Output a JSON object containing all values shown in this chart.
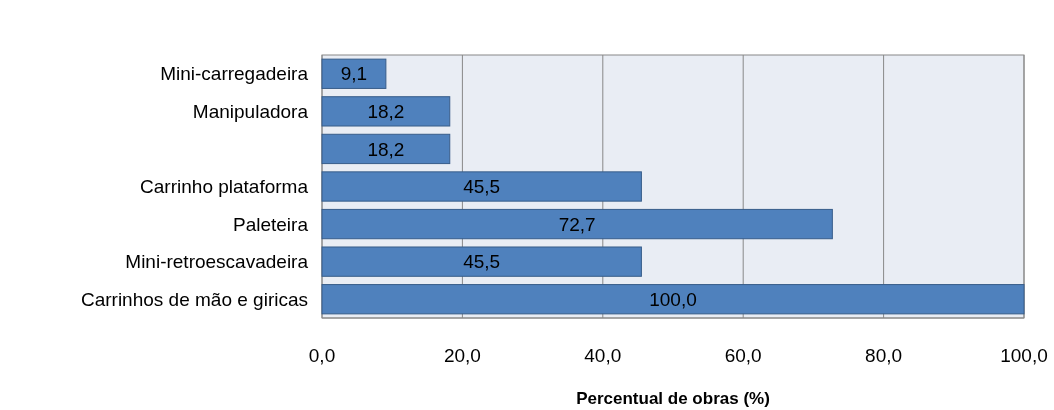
{
  "chart_data": {
    "type": "bar",
    "orientation": "horizontal",
    "xlabel": "Percentual de obras (%)",
    "categories": [
      "Mini-carregadeira",
      "Manipuladora",
      null,
      "Carrinho plataforma",
      "Paleteira",
      "Mini-retroescavadeira",
      "Carrinhos de mão e giricas"
    ],
    "values": [
      9.1,
      18.2,
      18.2,
      45.5,
      72.7,
      45.5,
      100.0
    ],
    "value_labels": [
      "9,1",
      "18,2",
      "18,2",
      "45,5",
      "72,7",
      "45,5",
      "100,0"
    ],
    "color": "#4f81bd",
    "xlim": [
      0,
      100
    ],
    "xticks": [
      {
        "value": 0,
        "label": "0,0"
      },
      {
        "value": 20,
        "label": "20,0"
      },
      {
        "value": 40,
        "label": "40,0"
      },
      {
        "value": 60,
        "label": "60,0"
      },
      {
        "value": 80,
        "label": "80,0"
      },
      {
        "value": 100,
        "label": "100,0"
      }
    ],
    "grid": "x"
  }
}
